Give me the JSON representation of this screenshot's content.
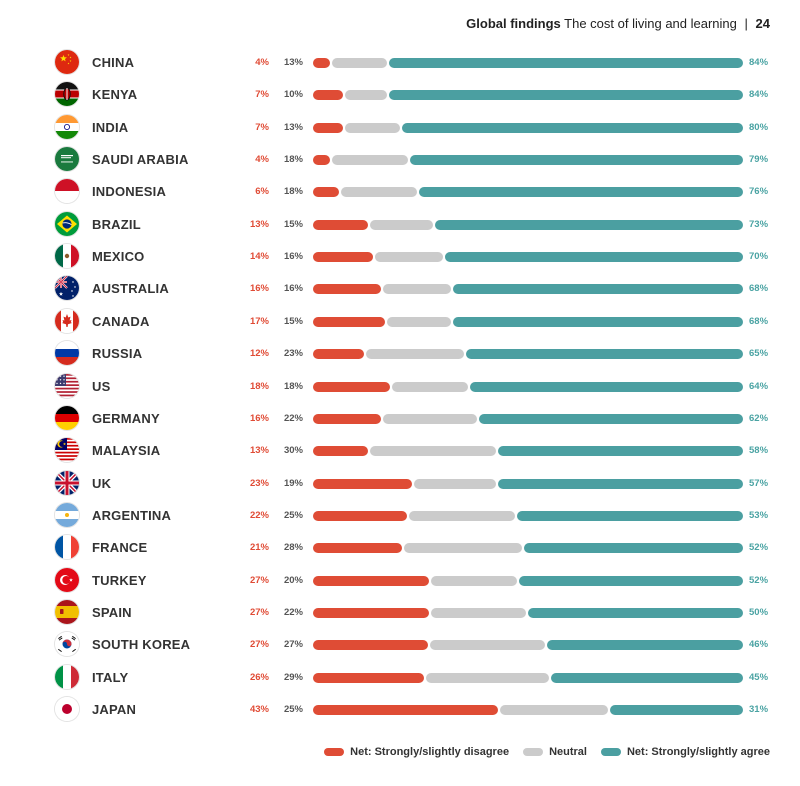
{
  "header": {
    "section": "Global findings",
    "subtitle": "The cost of living and learning",
    "separator": "|",
    "page_number": "24"
  },
  "colors": {
    "disagree": "#df4c35",
    "neutral": "#cbcbcb",
    "agree": "#4b9fa1"
  },
  "chart_data": {
    "type": "bar",
    "orientation": "horizontal",
    "stacked": true,
    "categories": [
      "CHINA",
      "KENYA",
      "INDIA",
      "SAUDI ARABIA",
      "INDONESIA",
      "BRAZIL",
      "MEXICO",
      "AUSTRALIA",
      "CANADA",
      "RUSSIA",
      "US",
      "GERMANY",
      "MALAYSIA",
      "UK",
      "ARGENTINA",
      "FRANCE",
      "TURKEY",
      "SPAIN",
      "SOUTH KOREA",
      "ITALY",
      "JAPAN"
    ],
    "series": [
      {
        "name": "Net: Strongly/slightly disagree",
        "values": [
          4,
          7,
          7,
          4,
          6,
          13,
          14,
          16,
          17,
          12,
          18,
          16,
          13,
          23,
          22,
          21,
          27,
          27,
          27,
          26,
          43
        ]
      },
      {
        "name": "Neutral",
        "values": [
          13,
          10,
          13,
          18,
          18,
          15,
          16,
          16,
          15,
          23,
          18,
          22,
          30,
          19,
          25,
          28,
          20,
          22,
          27,
          29,
          25
        ]
      },
      {
        "name": "Net: Strongly/slightly agree",
        "values": [
          84,
          84,
          80,
          79,
          76,
          73,
          70,
          68,
          68,
          65,
          64,
          62,
          58,
          57,
          53,
          52,
          52,
          50,
          46,
          45,
          31
        ]
      }
    ],
    "value_suffix": "%",
    "legend_position": "bottom-right",
    "grid": false
  },
  "flags": [
    "china-flag-icon",
    "kenya-flag-icon",
    "india-flag-icon",
    "saudi-arabia-flag-icon",
    "indonesia-flag-icon",
    "brazil-flag-icon",
    "mexico-flag-icon",
    "australia-flag-icon",
    "canada-flag-icon",
    "russia-flag-icon",
    "us-flag-icon",
    "germany-flag-icon",
    "malaysia-flag-icon",
    "uk-flag-icon",
    "argentina-flag-icon",
    "france-flag-icon",
    "turkey-flag-icon",
    "spain-flag-icon",
    "south-korea-flag-icon",
    "italy-flag-icon",
    "japan-flag-icon"
  ]
}
